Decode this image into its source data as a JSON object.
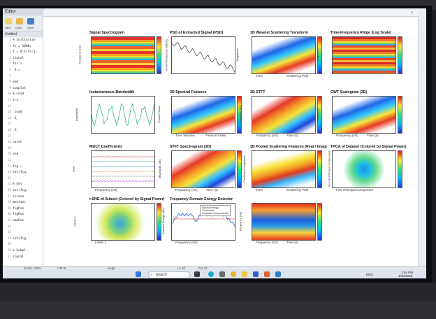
{
  "editor": {
    "title": "Editor",
    "toolbar": [
      "New",
      "Open",
      "Save"
    ],
    "tab": "Untitled",
    "lines": [
      {
        "n": "1",
        "t": "% Initialize"
      },
      {
        "n": "2",
        "t": "fs = 1000;"
      },
      {
        "n": "3",
        "t": "t = 0:1/fs:1;"
      },
      {
        "n": "4",
        "t": "signal"
      },
      {
        "n": "5",
        "t": "for i"
      },
      {
        "n": "6",
        "t": "  X = "
      },
      {
        "n": "7",
        "t": ""
      },
      {
        "n": "8",
        "t": "end"
      },
      {
        "n": "9",
        "t": "subplot"
      },
      {
        "n": "10",
        "t": "% Load"
      },
      {
        "n": "11",
        "t": "try"
      },
      {
        "n": "12",
        "t": ""
      },
      {
        "n": "13",
        "t": "  load"
      },
      {
        "n": "14",
        "t": "  X_"
      },
      {
        "n": "15",
        "t": ""
      },
      {
        "n": "16",
        "t": "  X_"
      },
      {
        "n": "17",
        "t": ""
      },
      {
        "n": "18",
        "t": "catch"
      },
      {
        "n": "19",
        "t": ""
      },
      {
        "n": "20",
        "t": "end"
      },
      {
        "n": "21",
        "t": ""
      },
      {
        "n": "22",
        "t": "fig ="
      },
      {
        "n": "23",
        "t": "set(fig,"
      },
      {
        "n": "24",
        "t": ""
      },
      {
        "n": "25",
        "t": "% Set"
      },
      {
        "n": "26",
        "t": "set(fig,"
      },
      {
        "n": "27",
        "t": "screen"
      },
      {
        "n": "28",
        "t": "monitor"
      },
      {
        "n": "29",
        "t": "figPos"
      },
      {
        "n": "30",
        "t": "figPos"
      },
      {
        "n": "31",
        "t": "newPos"
      },
      {
        "n": "32",
        "t": ""
      },
      {
        "n": "33",
        "t": ""
      },
      {
        "n": "34",
        "t": "set(fig,"
      },
      {
        "n": "35",
        "t": ""
      },
      {
        "n": "36",
        "t": "% Subpl"
      },
      {
        "n": "37",
        "t": "signal"
      }
    ]
  },
  "figure": {
    "close_glyph": "×",
    "panels": [
      {
        "id": "signal-spectrogram",
        "title": "Signal Spectrogram",
        "ylabel": "Frequency (Hz)",
        "style": "heat-a",
        "cbar": true
      },
      {
        "id": "psd-extracted",
        "title": "PSD of Extracted Signal (PSD)",
        "ylabel": "Power/Frequency (dB/Hz)",
        "style": "line",
        "cbar": false
      },
      {
        "id": "wavelet-scattering",
        "title": "3D Wavelet Scattering Transform",
        "ylabel": "Magnitude",
        "xlabel": "Time",
        "xlabel2": "Scattering Path",
        "style": "surf",
        "cbar": true
      },
      {
        "id": "tf-ridge",
        "title": "Time-Frequency Ridge (Log Scale)",
        "ylabel": "Frequency",
        "style": "heat-b",
        "cbar": true
      },
      {
        "id": "inst-bandwidth",
        "title": "Instantaneous Bandwidth",
        "ylabel": "Bandwidth",
        "style": "line2",
        "cbar": false
      },
      {
        "id": "spectral-features",
        "title": "3D Spectral Features",
        "ylabel": "Feature Value",
        "xlabel": "Time Window",
        "xlabel2": "Feature Index",
        "style": "surf",
        "cbar": true
      },
      {
        "id": "stft-3d",
        "title": "3D STFT",
        "ylabel": "Magnitude (dB)",
        "xlabel": "Frequency (Hz)",
        "xlabel2": "Time (s)",
        "style": "surf2",
        "cbar": true
      },
      {
        "id": "cwt-scalogram",
        "title": "CWT Scalogram (3D)",
        "ylabel": "Magnitude",
        "xlabel": "Frequency (Hz)",
        "xlabel2": "Time (s)",
        "style": "surf",
        "cbar": true
      },
      {
        "id": "mdct-coefficients",
        "title": "MDCT Coefficients",
        "ylabel": "Level",
        "xlabel": "Frequency (Hz)",
        "style": "mdct",
        "cbar": false
      },
      {
        "id": "stft-spectrogram-3d",
        "title": "STFT Spectrogram (3D)",
        "ylabel": "Magnitude (dB)",
        "xlabel": "Frequency (Hz)",
        "xlabel2": "Time (s)",
        "style": "surf2",
        "cbar": true
      },
      {
        "id": "pooled-scattering",
        "title": "3D Pooled Scattering Features (Real / Imag)",
        "ylabel": "Coefficient Magnitude",
        "xlabel": "Time",
        "xlabel2": "Scattering Path",
        "style": "surf3",
        "cbar": true
      },
      {
        "id": "tpca-dataset",
        "title": "TPCA of Dataset (Colored by Signal Power)",
        "ylabel": "Second Principal Component",
        "xlabel": "First Principal Component",
        "style": "scatter-a",
        "cbar": true
      },
      {
        "id": "tsne-subset",
        "title": "t-SNE of Subset (Colored by Signal Power)",
        "ylabel": "t-SNE 2",
        "xlabel": "t-SNE 1",
        "style": "scatter-b",
        "cbar": true
      },
      {
        "id": "energy-detector",
        "title": "Frequency Domain Energy Detector",
        "ylabel": "Spectral Energy (dB)",
        "xlabel": "Frequency (Hz)",
        "style": "energy",
        "cbar": false,
        "legend": [
          "Signal Energy",
          "Threshold",
          "Detected Components"
        ]
      },
      {
        "id": "deep-panel",
        "title": "",
        "ylabel": "Frequency (Hz)",
        "xlabel": "Frequency (Hz)",
        "xlabel2": "Time (s)",
        "style": "deep",
        "cbar": true
      }
    ]
  },
  "statusbar": {
    "left": "Zoom: 100%",
    "mid": "UTF-8",
    "right1": "script",
    "pos": "Ln 10",
    "col": "Col 37"
  },
  "taskbar": {
    "search_label": "Search",
    "lang": "ENG",
    "time": "1:54 PM",
    "date": "1/20/2025"
  },
  "colors": {
    "accent": "#1f66e6",
    "hot": "#e8322a"
  }
}
